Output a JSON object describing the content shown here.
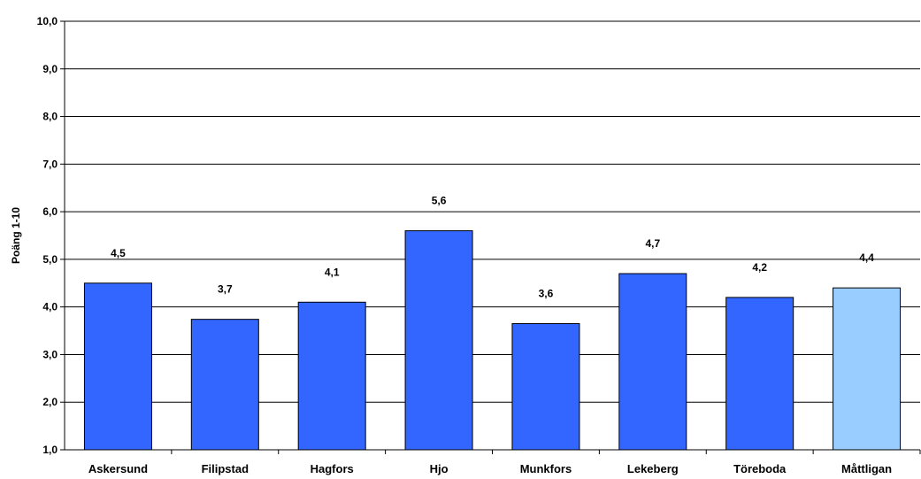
{
  "chart_data": {
    "type": "bar",
    "title": "",
    "xlabel": "",
    "ylabel": "Poäng 1-10",
    "ylim": [
      1,
      10
    ],
    "yticks": [
      "1,0",
      "2,0",
      "3,0",
      "4,0",
      "5,0",
      "6,0",
      "7,0",
      "8,0",
      "9,0",
      "10,0"
    ],
    "categories": [
      "Askersund",
      "Filipstad",
      "Hagfors",
      "Hjo",
      "Munkfors",
      "Lekeberg",
      "Töreboda",
      "Måttligan"
    ],
    "values": [
      4.5,
      3.74,
      4.1,
      5.6,
      3.65,
      4.7,
      4.2,
      4.4
    ],
    "value_labels": [
      "4,5",
      "3,7",
      "4,1",
      "5,6",
      "3,6",
      "4,7",
      "4,2",
      "4,4"
    ],
    "grid": true,
    "legend": "none",
    "bar_colors": [
      "#3366ff",
      "#3366ff",
      "#3366ff",
      "#3366ff",
      "#3366ff",
      "#3366ff",
      "#3366ff",
      "#99ccff"
    ]
  }
}
